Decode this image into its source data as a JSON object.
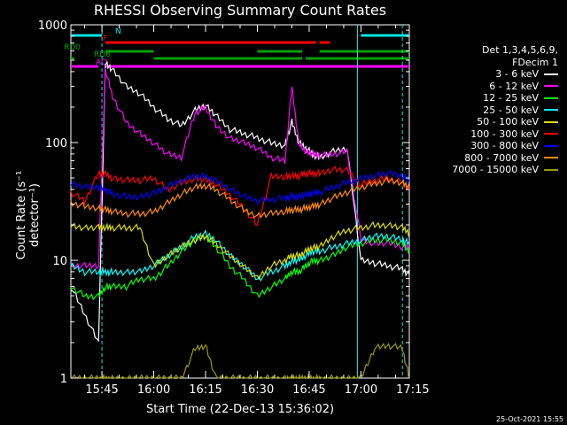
{
  "title": "RHESSI Observing Summary Count Rates",
  "xlabel": "Start Time (22-Dec-13 15:36:02)",
  "ylabel": "Count Rate (s⁻¹ detector⁻¹)",
  "timestamp": "25-Oct-2021 15:55",
  "legend_header": [
    "Det 1,3,4,5,6,9,",
    "FDecim 1"
  ],
  "flags": [
    {
      "name": "N",
      "color": "#00e5e5"
    },
    {
      "name": "F",
      "color": "#ff0000"
    },
    {
      "name": "RD0",
      "color": "#00a000"
    },
    {
      "name": "RD6",
      "color": "#00a000"
    },
    {
      "name": "AO",
      "color": "#ff00ff"
    }
  ],
  "chart_data": {
    "type": "line",
    "title": "RHESSI Observing Summary Count Rates",
    "xlabel": "Start Time (22-Dec-13 15:36:02)",
    "ylabel": "Count Rate (s^-1 detector^-1)",
    "yscale": "log",
    "ylim": [
      1,
      1000
    ],
    "xlim": [
      "15:36",
      "17:14"
    ],
    "x_ticks": [
      "15:45",
      "16:00",
      "16:15",
      "16:30",
      "16:45",
      "17:00",
      "17:15"
    ],
    "y_ticks": [
      "1",
      "10",
      "100",
      "1000"
    ],
    "legend_position": "right",
    "x": [
      "15:36",
      "15:40",
      "15:44",
      "15:46",
      "15:48",
      "15:52",
      "15:56",
      "16:00",
      "16:04",
      "16:08",
      "16:12",
      "16:15",
      "16:18",
      "16:22",
      "16:26",
      "16:30",
      "16:34",
      "16:38",
      "16:40",
      "16:42",
      "16:44",
      "16:46",
      "16:48",
      "16:52",
      "16:56",
      "17:00",
      "17:04",
      "17:08",
      "17:12",
      "17:14"
    ],
    "series": [
      {
        "name": "3 - 6 keV",
        "color": "#ffffff",
        "values": [
          6,
          3.5,
          2,
          480,
          420,
          300,
          260,
          200,
          160,
          140,
          190,
          210,
          170,
          130,
          120,
          110,
          100,
          95,
          150,
          100,
          90,
          80,
          75,
          85,
          90,
          10,
          9.5,
          9,
          8.5,
          7.5
        ]
      },
      {
        "name": "6 - 12 keV",
        "color": "#ff00ff",
        "values": [
          9,
          9,
          9,
          420,
          250,
          150,
          120,
          100,
          80,
          75,
          180,
          200,
          140,
          110,
          100,
          90,
          75,
          70,
          300,
          100,
          85,
          80,
          78,
          80,
          85,
          15,
          14,
          14,
          13,
          13
        ]
      },
      {
        "name": "12 - 25 keV",
        "color": "#00ff00",
        "values": [
          6,
          5,
          5,
          6,
          6,
          6,
          7,
          7,
          9,
          12,
          15,
          16,
          13,
          9,
          7,
          5,
          6,
          7,
          8,
          8,
          9,
          10,
          10,
          11,
          13,
          14,
          15,
          15,
          14,
          12
        ]
      },
      {
        "name": "25 - 50 keV",
        "color": "#00ffff",
        "values": [
          9,
          8,
          8,
          8,
          8,
          8,
          8,
          9,
          11,
          13,
          16,
          17,
          15,
          11,
          9,
          7,
          8,
          9,
          10,
          10,
          11,
          12,
          12,
          13,
          14,
          15,
          16,
          16,
          15,
          14
        ]
      },
      {
        "name": "50 - 100 keV",
        "color": "#dddd00",
        "values": [
          20,
          19,
          19,
          19,
          19,
          19,
          19,
          9,
          11,
          13,
          15,
          16,
          14,
          11,
          9,
          7,
          9,
          10,
          11,
          11,
          12,
          13,
          13,
          16,
          18,
          19,
          20,
          20,
          19,
          17
        ]
      },
      {
        "name": "100 - 300 keV",
        "color": "#ff0000",
        "values": [
          38,
          32,
          55,
          55,
          50,
          48,
          48,
          50,
          40,
          46,
          50,
          48,
          44,
          36,
          28,
          20,
          52,
          52,
          52,
          52,
          55,
          55,
          55,
          60,
          58,
          44,
          48,
          50,
          46,
          40
        ]
      },
      {
        "name": "300 - 800 keV",
        "color": "#0000ff",
        "values": [
          45,
          42,
          42,
          40,
          37,
          35,
          35,
          37,
          42,
          48,
          52,
          52,
          48,
          41,
          35,
          32,
          33,
          34,
          35,
          35,
          36,
          37,
          38,
          42,
          46,
          50,
          53,
          55,
          52,
          48
        ]
      },
      {
        "name": "800 - 7000 keV",
        "color": "#ff8c00",
        "values": [
          31,
          29,
          28,
          27,
          26,
          25,
          25,
          26,
          31,
          37,
          42,
          43,
          40,
          33,
          27,
          24,
          25,
          26,
          27,
          27,
          28,
          29,
          30,
          34,
          38,
          42,
          45,
          48,
          46,
          42
        ]
      },
      {
        "name": "7000 - 15000 keV",
        "color": "#999900",
        "values": [
          1,
          1,
          1,
          1,
          1,
          1,
          1,
          1,
          1,
          1,
          1.8,
          1.9,
          1,
          1,
          1,
          1,
          1,
          1,
          1,
          1,
          1,
          1,
          1,
          1,
          1,
          1,
          1.8,
          1.9,
          1.8,
          1
        ]
      }
    ]
  }
}
